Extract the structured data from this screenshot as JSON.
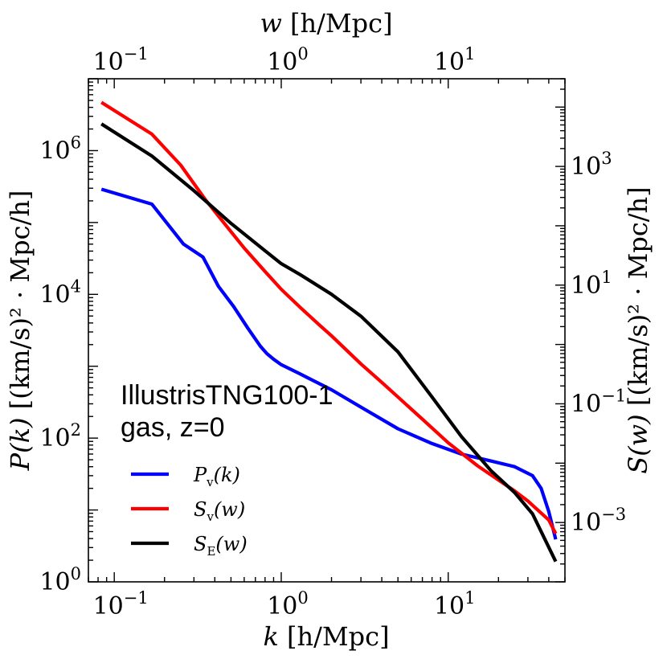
{
  "chart_data": {
    "type": "line",
    "scale": "log-log",
    "bottom_axis": {
      "label": "k [h/Mpc]",
      "label_var": "k",
      "label_unit": " [h/Mpc]",
      "range": [
        0.07,
        50
      ],
      "ticks": [
        {
          "base": "10",
          "exp": "−1",
          "value": 0.1
        },
        {
          "base": "10",
          "exp": "0",
          "value": 1
        },
        {
          "base": "10",
          "exp": "1",
          "value": 10
        }
      ]
    },
    "top_axis": {
      "label": "w [h/Mpc]",
      "label_var": "w",
      "label_unit": " [h/Mpc]",
      "range": [
        0.07,
        50
      ],
      "ticks": [
        {
          "base": "10",
          "exp": "−1",
          "value": 0.1
        },
        {
          "base": "10",
          "exp": "0",
          "value": 1
        },
        {
          "base": "10",
          "exp": "1",
          "value": 10
        }
      ]
    },
    "left_axis": {
      "label": "P(k) [(km/s)² · Mpc/h]",
      "label_var": "P(k)",
      "label_unit": " [(km/s)² · Mpc/h]",
      "range": [
        1,
        10000000.0
      ],
      "ticks": [
        {
          "base": "10",
          "exp": "0",
          "value": 1
        },
        {
          "base": "10",
          "exp": "2",
          "value": 100
        },
        {
          "base": "10",
          "exp": "4",
          "value": 10000
        },
        {
          "base": "10",
          "exp": "6",
          "value": 1000000
        }
      ]
    },
    "right_axis": {
      "label": "S(w) [(km/s)² · Mpc/h]",
      "label_var": "S(w)",
      "label_unit": " [(km/s)² · Mpc/h]",
      "range": [
        0.0001,
        30000
      ],
      "ticks": [
        {
          "base": "10",
          "exp": "−3",
          "value": 0.001
        },
        {
          "base": "10",
          "exp": "−1",
          "value": 0.1
        },
        {
          "base": "10",
          "exp": "1",
          "value": 10
        },
        {
          "base": "10",
          "exp": "3",
          "value": 1000
        }
      ]
    },
    "annotation": [
      "IllustrisTNG100-1",
      "gas, z=0"
    ],
    "series": [
      {
        "name": "P_v(k)",
        "legend_main": "P",
        "legend_sub": "v",
        "legend_arg": "(k)",
        "color": "#0000ff",
        "axis": "left",
        "x": [
          0.0838,
          0.168,
          0.26,
          0.34,
          0.42,
          0.52,
          0.63,
          0.75,
          0.82,
          0.9,
          1.0,
          1.3,
          1.6,
          2.0,
          3.0,
          5.0,
          8.0,
          12.0,
          18.0,
          25.0,
          32.0,
          36.0,
          40.0,
          44.0
        ],
        "values": [
          290000,
          180000,
          50000,
          33000,
          13000,
          6700,
          3400,
          1900,
          1500,
          1250,
          1050,
          780,
          610,
          470,
          270,
          135,
          84,
          60,
          48,
          40,
          30,
          20,
          9.5,
          3.9
        ]
      },
      {
        "name": "S_v(w)",
        "legend_main": "S",
        "legend_sub": "v",
        "legend_arg": "(w)",
        "color": "#ff0000",
        "axis": "right",
        "x": [
          0.0838,
          0.168,
          0.25,
          0.35,
          0.45,
          0.6,
          0.8,
          1.0,
          1.3,
          1.7,
          2.0,
          3.0,
          4.0,
          5.0,
          7.0,
          10.0,
          15.0,
          20.0,
          25.0,
          30.0,
          40.0,
          44.0
        ],
        "values": [
          12000,
          3500,
          1050,
          280,
          115,
          42,
          17,
          8.5,
          4.2,
          2.1,
          1.4,
          0.47,
          0.23,
          0.13,
          0.055,
          0.022,
          0.009,
          0.0052,
          0.0034,
          0.0023,
          0.0011,
          0.00065
        ]
      },
      {
        "name": "S_E(w)",
        "legend_main": "S",
        "legend_sub": "E",
        "legend_arg": "(w)",
        "color": "#000000",
        "axis": "right",
        "x": [
          0.0838,
          0.168,
          0.3,
          0.5,
          0.8,
          1.0,
          1.3,
          2.0,
          3.0,
          5.0,
          8.0,
          12.0,
          18.0,
          25.0,
          32.0,
          44.0
        ],
        "values": [
          5200,
          1500,
          390,
          110,
          38,
          23,
          15,
          7.0,
          3.0,
          0.75,
          0.13,
          0.028,
          0.0075,
          0.0032,
          0.0014,
          0.00022
        ]
      }
    ],
    "legend_position": "lower-left"
  }
}
